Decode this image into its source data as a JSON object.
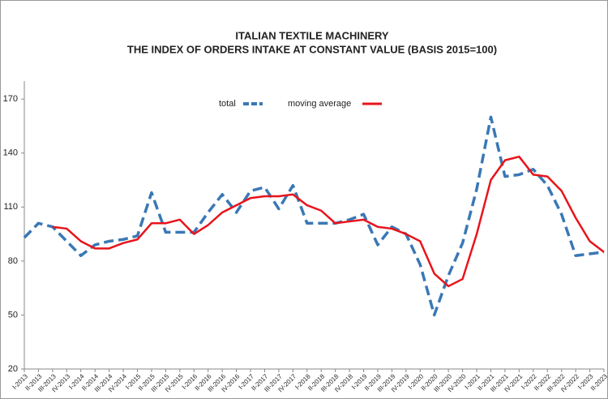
{
  "chart_data": {
    "type": "line",
    "title": "ITALIAN TEXTILE MACHINERY",
    "subtitle": "THE INDEX OF ORDERS INTAKE AT CONSTANT VALUE (BASIS 2015=100)",
    "categories": [
      "I-2013",
      "II-2013",
      "III-2013",
      "IV-2013",
      "I-2014",
      "II-2014",
      "III-2014",
      "IV-2014",
      "I-2015",
      "II-2015",
      "III-2015",
      "IV-2015",
      "I-2016",
      "II-2016",
      "III-2016",
      "IV-2016",
      "I-2017",
      "II-2017",
      "III-2017",
      "IV-2017",
      "I-2018",
      "II-2018",
      "III-2018",
      "IV-2018",
      "I-2019",
      "II-2019",
      "III-2019",
      "IV-2019",
      "I-2020",
      "II-2020",
      "III-2020",
      "IV-2020",
      "I-2021",
      "II-2021",
      "III-2021",
      "IV-2021",
      "I-2022",
      "II-2022",
      "III-2022",
      "IV-2022",
      "I-2023",
      "II-2023"
    ],
    "series": [
      {
        "name": "total",
        "color": "#3a78b5",
        "dash": true,
        "values": [
          93,
          101,
          99,
          91,
          83,
          89,
          91,
          92,
          94,
          118,
          96,
          96,
          96,
          107,
          117,
          107,
          119,
          121,
          109,
          122,
          101,
          101,
          101,
          103,
          106,
          89,
          99,
          95,
          78,
          50,
          72,
          90,
          120,
          160,
          127,
          128,
          131,
          122,
          106,
          83,
          84,
          85
        ]
      },
      {
        "name": "moving average",
        "color": "#e8141b",
        "dash": false,
        "values": [
          null,
          null,
          99,
          98,
          91,
          87,
          87,
          90,
          92,
          101,
          101,
          103,
          95,
          100,
          107,
          111,
          115,
          116,
          116,
          117,
          111,
          108,
          101,
          102,
          103,
          99,
          98,
          95,
          91,
          73,
          66,
          70,
          95,
          125,
          136,
          138,
          128,
          127,
          119,
          104,
          91,
          85
        ]
      }
    ],
    "ylim": [
      20,
      180
    ],
    "yticks": [
      20,
      50,
      80,
      110,
      140,
      170
    ]
  }
}
